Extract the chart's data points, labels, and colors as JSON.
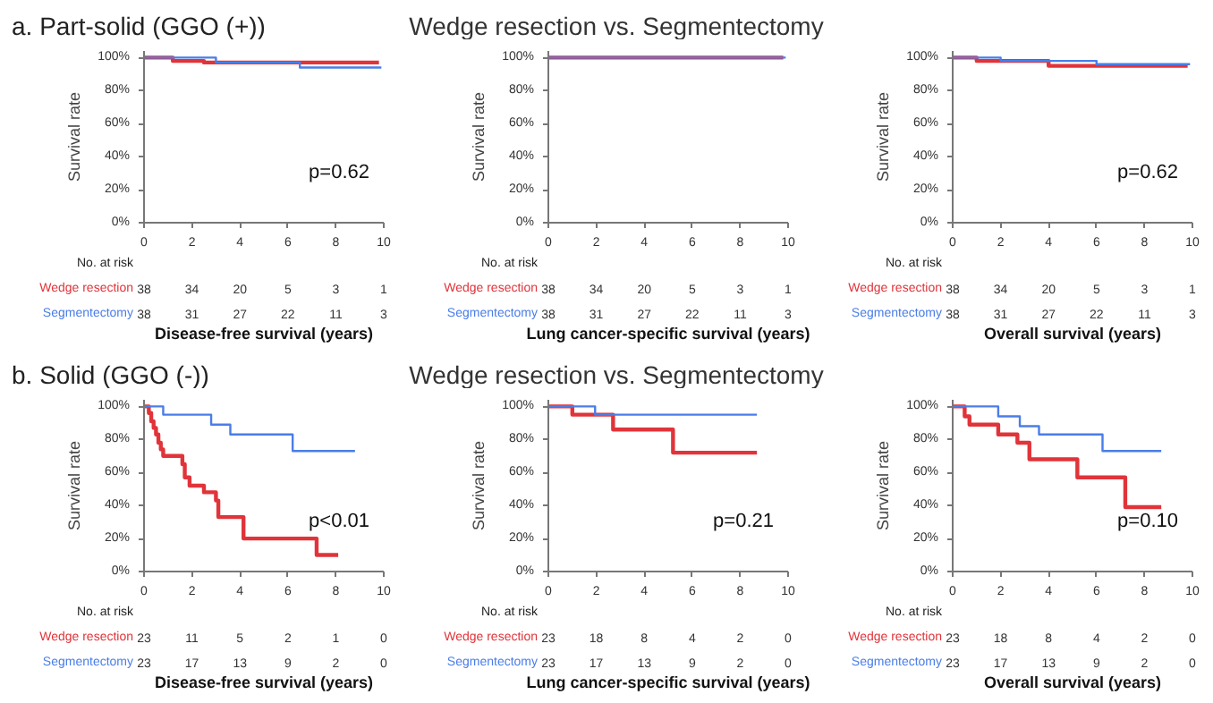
{
  "chart_data": [
    {
      "type": "step",
      "title": "a. Part-solid (GGO (+))",
      "xlabel": "Disease-free survival (years)",
      "ylabel": "Survival rate",
      "xlim": [
        0,
        10
      ],
      "ylim": [
        0,
        104
      ],
      "xticks": [
        0,
        2,
        4,
        6,
        8,
        10
      ],
      "yticks": [
        {
          "value": 0,
          "label": "0%"
        },
        {
          "value": 20,
          "label": "20%"
        },
        {
          "value": 40,
          "label": "40%"
        },
        {
          "value": 60,
          "label": "60%"
        },
        {
          "value": 80,
          "label": "80%"
        },
        {
          "value": 100,
          "label": "100%"
        }
      ],
      "grid": false,
      "series": [
        {
          "name": "Wedge resection",
          "color": "#e0343a",
          "x": [
            0,
            1.2,
            2.5,
            9.8
          ],
          "values": [
            100,
            98,
            97,
            97
          ]
        },
        {
          "name": "Segmentectomy",
          "color": "#4a7de8",
          "x": [
            0,
            3,
            6.5,
            9.9
          ],
          "values": [
            100,
            97,
            94,
            94
          ]
        }
      ],
      "annotations": [
        "No. at risk",
        "38 34 20 5 3 1",
        "38 31 27 22 11 3",
        "p=0.62"
      ]
    },
    {
      "type": "step",
      "title": "Wedge resection vs. Segmentectomy",
      "xlabel": "Lung cancer-specific survival (years)",
      "ylabel": "Survival rate",
      "xlim": [
        0,
        10
      ],
      "ylim": [
        0,
        104
      ],
      "xticks": [
        0,
        2,
        4,
        6,
        8,
        10
      ],
      "yticks": [
        {
          "value": 0,
          "label": "0%"
        },
        {
          "value": 20,
          "label": "20%"
        },
        {
          "value": 40,
          "label": "40%"
        },
        {
          "value": 60,
          "label": "60%"
        },
        {
          "value": 80,
          "label": "80%"
        },
        {
          "value": 100,
          "label": "100%"
        }
      ],
      "grid": false,
      "series": [
        {
          "name": "Wedge resection",
          "color": "#e0343a",
          "x": [
            0,
            9.8
          ],
          "values": [
            100,
            100
          ]
        },
        {
          "name": "Segmentectomy",
          "color": "#4a7de8",
          "x": [
            0,
            9.9
          ],
          "values": [
            100,
            100
          ]
        }
      ],
      "annotations": [
        "No. at risk",
        "38 34 20 5 3 1",
        "38 31 27 22 11 3"
      ]
    },
    {
      "type": "step",
      "xlabel": "Overall survival (years)",
      "ylabel": "Survival rate",
      "xlim": [
        0,
        10
      ],
      "ylim": [
        0,
        104
      ],
      "xticks": [
        0,
        2,
        4,
        6,
        8,
        10
      ],
      "yticks": [
        {
          "value": 0,
          "label": "0%"
        },
        {
          "value": 20,
          "label": "20%"
        },
        {
          "value": 40,
          "label": "40%"
        },
        {
          "value": 60,
          "label": "60%"
        },
        {
          "value": 80,
          "label": "80%"
        },
        {
          "value": 100,
          "label": "100%"
        }
      ],
      "grid": false,
      "series": [
        {
          "name": "Wedge resection",
          "color": "#e0343a",
          "x": [
            0,
            1,
            4,
            9.8
          ],
          "values": [
            100,
            98,
            95,
            95
          ]
        },
        {
          "name": "Segmentectomy",
          "color": "#4a7de8",
          "x": [
            0,
            2,
            6,
            9.9
          ],
          "values": [
            100,
            98,
            96,
            96
          ]
        }
      ],
      "annotations": [
        "No. at risk",
        "38 34 20 5 3 1",
        "38 31 27 22 11 3",
        "p=0.62"
      ]
    },
    {
      "type": "step",
      "title": "b. Solid (GGO (-))",
      "xlabel": "Disease-free survival (years)",
      "ylabel": "Survival rate",
      "xlim": [
        0,
        10
      ],
      "ylim": [
        0,
        104
      ],
      "xticks": [
        0,
        2,
        4,
        6,
        8,
        10
      ],
      "yticks": [
        {
          "value": 0,
          "label": "0%"
        },
        {
          "value": 20,
          "label": "20%"
        },
        {
          "value": 40,
          "label": "40%"
        },
        {
          "value": 60,
          "label": "60%"
        },
        {
          "value": 80,
          "label": "80%"
        },
        {
          "value": 100,
          "label": "100%"
        }
      ],
      "grid": false,
      "series": [
        {
          "name": "Wedge resection",
          "color": "#e0343a",
          "x": [
            0,
            0.2,
            0.3,
            0.4,
            0.5,
            0.6,
            0.7,
            0.8,
            1.6,
            1.7,
            1.9,
            2.5,
            3.0,
            3.1,
            4.15,
            7.2,
            8.1
          ],
          "values": [
            100,
            96,
            91,
            87,
            83,
            78,
            74,
            70,
            65,
            57,
            52,
            48,
            43,
            33,
            20,
            10,
            10
          ]
        },
        {
          "name": "Segmentectomy",
          "color": "#4a7de8",
          "x": [
            0,
            0.8,
            2.8,
            3.6,
            6.2,
            8.8
          ],
          "values": [
            100,
            95,
            89,
            83,
            73,
            73
          ]
        }
      ],
      "annotations": [
        "No. at risk",
        "23 11 5 2 1 0",
        "23 17 13 9 2 0",
        "p<0.01"
      ]
    },
    {
      "type": "step",
      "title": "Wedge resection vs. Segmentectomy",
      "xlabel": "Lung cancer-specific survival (years)",
      "ylabel": "Survival rate",
      "xlim": [
        0,
        10
      ],
      "ylim": [
        0,
        104
      ],
      "xticks": [
        0,
        2,
        4,
        6,
        8,
        10
      ],
      "yticks": [
        {
          "value": 0,
          "label": "0%"
        },
        {
          "value": 20,
          "label": "20%"
        },
        {
          "value": 40,
          "label": "40%"
        },
        {
          "value": 60,
          "label": "60%"
        },
        {
          "value": 80,
          "label": "80%"
        },
        {
          "value": 100,
          "label": "100%"
        }
      ],
      "grid": false,
      "series": [
        {
          "name": "Wedge resection",
          "color": "#e0343a",
          "x": [
            0,
            1.0,
            2.7,
            5.2,
            8.7
          ],
          "values": [
            100,
            95,
            86,
            72,
            72
          ]
        },
        {
          "name": "Segmentectomy",
          "color": "#4a7de8",
          "x": [
            0,
            1.95,
            8.7
          ],
          "values": [
            100,
            95,
            95
          ]
        }
      ],
      "annotations": [
        "No. at risk",
        "23 18 8 4 2 0",
        "23 17 13 9 2 0",
        "p=0.21"
      ]
    },
    {
      "type": "step",
      "xlabel": "Overall survival (years)",
      "ylabel": "Survival rate",
      "xlim": [
        0,
        10
      ],
      "ylim": [
        0,
        104
      ],
      "xticks": [
        0,
        2,
        4,
        6,
        8,
        10
      ],
      "yticks": [
        {
          "value": 0,
          "label": "0%"
        },
        {
          "value": 20,
          "label": "20%"
        },
        {
          "value": 40,
          "label": "40%"
        },
        {
          "value": 60,
          "label": "60%"
        },
        {
          "value": 80,
          "label": "80%"
        },
        {
          "value": 100,
          "label": "100%"
        }
      ],
      "grid": false,
      "series": [
        {
          "name": "Wedge resection",
          "color": "#e0343a",
          "x": [
            0,
            0.5,
            0.7,
            1.9,
            2.7,
            3.2,
            5.2,
            7.2,
            8.7
          ],
          "values": [
            100,
            94,
            89,
            83,
            78,
            68,
            57,
            39,
            39
          ]
        },
        {
          "name": "Segmentectomy",
          "color": "#4a7de8",
          "x": [
            0,
            1.9,
            2.8,
            3.6,
            6.25,
            8.7
          ],
          "values": [
            100,
            94,
            88,
            83,
            73,
            73
          ]
        }
      ],
      "annotations": [
        "No. at risk",
        "23 18 8 4 2 0",
        "23 17 13 9 2 0",
        "p=0.10"
      ]
    }
  ]
}
